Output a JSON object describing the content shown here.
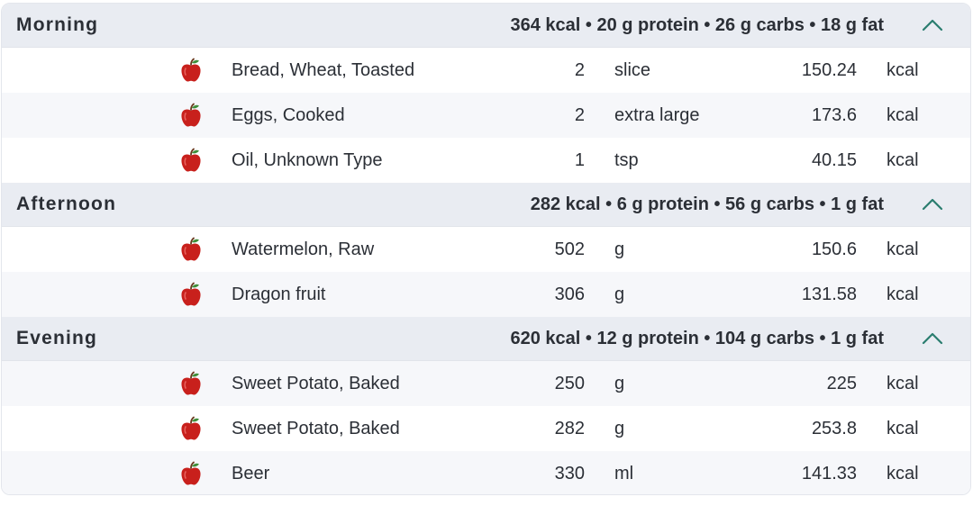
{
  "colors": {
    "header_bg": "#e9ecf2",
    "row_alt_bg": "#f6f7fa",
    "toggle_chevron": "#2a7d6f",
    "apple_red": "#c8201c",
    "apple_leaf": "#3f8f3a"
  },
  "meals": [
    {
      "name": "Morning",
      "summary": "364 kcal • 20 g protein • 26 g carbs • 18 g fat",
      "toggle_icon": "chevron-up-icon",
      "items": [
        {
          "icon": "apple-icon",
          "name": "Bread, Wheat, Toasted",
          "qty": "2",
          "unit": "slice",
          "kcal": "150.24",
          "kcal_unit": "kcal"
        },
        {
          "icon": "apple-icon",
          "name": "Eggs, Cooked",
          "qty": "2",
          "unit": "extra large",
          "kcal": "173.6",
          "kcal_unit": "kcal"
        },
        {
          "icon": "apple-icon",
          "name": "Oil, Unknown Type",
          "qty": "1",
          "unit": "tsp",
          "kcal": "40.15",
          "kcal_unit": "kcal"
        }
      ]
    },
    {
      "name": "Afternoon",
      "summary": "282 kcal • 6 g protein • 56 g carbs • 1 g fat",
      "toggle_icon": "chevron-up-icon",
      "items": [
        {
          "icon": "apple-icon",
          "name": "Watermelon, Raw",
          "qty": "502",
          "unit": "g",
          "kcal": "150.6",
          "kcal_unit": "kcal"
        },
        {
          "icon": "apple-icon",
          "name": "Dragon fruit",
          "qty": "306",
          "unit": "g",
          "kcal": "131.58",
          "kcal_unit": "kcal"
        }
      ]
    },
    {
      "name": "Evening",
      "summary": "620 kcal • 12 g protein • 104 g carbs • 1 g fat",
      "toggle_icon": "chevron-up-icon",
      "items": [
        {
          "icon": "apple-icon",
          "name": "Sweet Potato, Baked",
          "qty": "250",
          "unit": "g",
          "kcal": "225",
          "kcal_unit": "kcal"
        },
        {
          "icon": "apple-icon",
          "name": "Sweet Potato, Baked",
          "qty": "282",
          "unit": "g",
          "kcal": "253.8",
          "kcal_unit": "kcal"
        },
        {
          "icon": "apple-icon",
          "name": "Beer",
          "qty": "330",
          "unit": "ml",
          "kcal": "141.33",
          "kcal_unit": "kcal"
        }
      ]
    }
  ]
}
